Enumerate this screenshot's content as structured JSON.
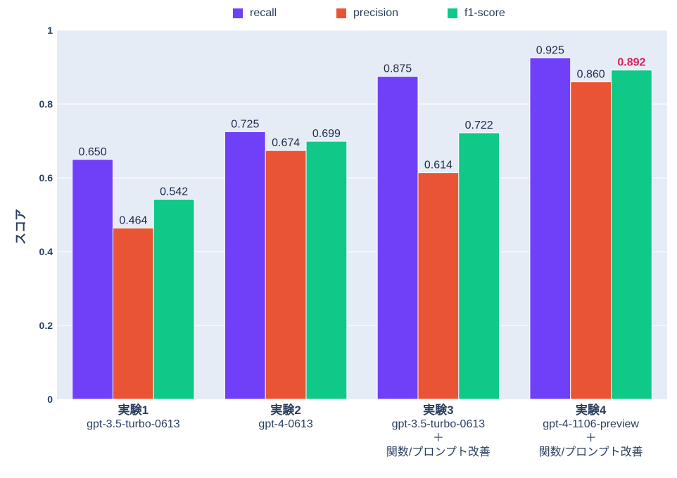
{
  "chart_data": {
    "type": "bar",
    "title": "",
    "ylabel": "スコア",
    "xlabel": "",
    "ylim": [
      0,
      1
    ],
    "yticks": [
      0,
      0.2,
      0.4,
      0.6,
      0.8,
      1
    ],
    "ytick_labels": [
      "0",
      "0.2",
      "0.4",
      "0.6",
      "0.8",
      "1"
    ],
    "categories": [
      {
        "title": "実験1",
        "lines": [
          "gpt-3.5-turbo-0613"
        ]
      },
      {
        "title": "実験2",
        "lines": [
          "gpt-4-0613"
        ]
      },
      {
        "title": "実験3",
        "lines": [
          "gpt-3.5-turbo-0613",
          "＋",
          "関数/プロンプト改善"
        ]
      },
      {
        "title": "実験4",
        "lines": [
          "gpt-4-1106-preview",
          "＋",
          "関数/プロンプト改善"
        ]
      }
    ],
    "series": [
      {
        "name": "recall",
        "color": "#7040f8",
        "values": [
          0.65,
          0.725,
          0.875,
          0.925
        ],
        "labels": [
          "0.650",
          "0.725",
          "0.875",
          "0.925"
        ]
      },
      {
        "name": "precision",
        "color": "#e95534",
        "values": [
          0.464,
          0.674,
          0.614,
          0.86
        ],
        "labels": [
          "0.464",
          "0.674",
          "0.614",
          "0.860"
        ]
      },
      {
        "name": "f1-score",
        "color": "#10c887",
        "values": [
          0.542,
          0.699,
          0.722,
          0.892
        ],
        "labels": [
          "0.542",
          "0.699",
          "0.722",
          "0.892"
        ]
      }
    ],
    "highlight": {
      "series": 2,
      "index": 3,
      "color": "#d6205a"
    },
    "legend_position": "top-center",
    "grid": true
  }
}
